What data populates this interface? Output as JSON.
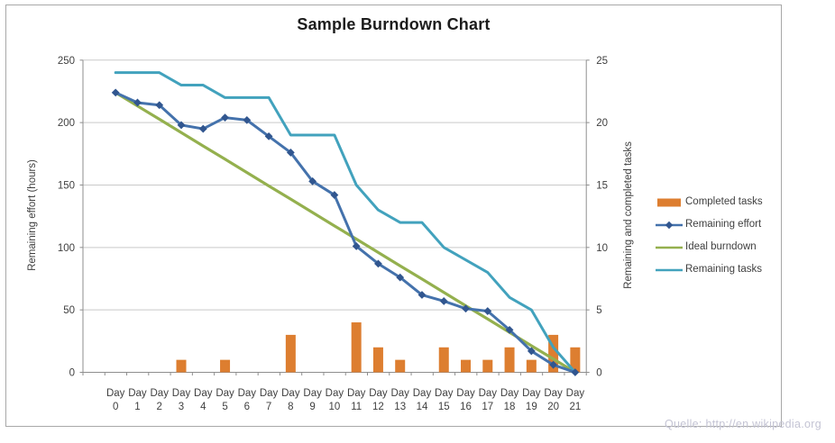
{
  "header": {
    "title": "Sample Burndown Chart"
  },
  "footer": {
    "source_text": "Quelle: http://en.wikipedia.org"
  },
  "chart_data": {
    "type": "combo",
    "title": "Sample Burndown Chart",
    "categories": [
      "Day 0",
      "Day 1",
      "Day 2",
      "Day 3",
      "Day 4",
      "Day 5",
      "Day 6",
      "Day 7",
      "Day 8",
      "Day 9",
      "Day 10",
      "Day 11",
      "Day 12",
      "Day 13",
      "Day 14",
      "Day 15",
      "Day 16",
      "Day 17",
      "Day 18",
      "Day 19",
      "Day 20",
      "Day 21"
    ],
    "axes": {
      "left": {
        "title": "Remaining effort (hours)",
        "min": 0,
        "max": 250,
        "step": 50,
        "tick_labels": [
          "0",
          "50",
          "100",
          "150",
          "200",
          "250"
        ]
      },
      "right": {
        "title": "Remaining and  completed tasks",
        "min": 0,
        "max": 25,
        "step": 5,
        "tick_labels": [
          "0",
          "5",
          "10",
          "15",
          "20",
          "25"
        ]
      }
    },
    "series": [
      {
        "name": "Completed tasks",
        "type": "bar",
        "axis": "right",
        "color": "#DD7E30",
        "values": [
          0,
          0,
          0,
          1,
          0,
          1,
          0,
          0,
          3,
          0,
          0,
          4,
          2,
          1,
          0,
          2,
          1,
          1,
          2,
          1,
          3,
          2
        ]
      },
      {
        "name": "Remaining effort",
        "type": "line",
        "axis": "left",
        "color": "#4472AC",
        "marker": "diamond",
        "marker_color": "#31568F",
        "values": [
          224,
          216,
          214,
          198,
          195,
          204,
          202,
          189,
          176,
          153,
          142,
          101,
          87,
          76,
          62,
          57,
          51,
          49,
          34,
          17,
          6,
          0
        ]
      },
      {
        "name": "Ideal burndown",
        "type": "line",
        "axis": "left",
        "color": "#94B04E",
        "values": [
          224,
          213.3,
          202.7,
          192,
          181.3,
          170.7,
          160,
          149.3,
          138.7,
          128,
          117.3,
          106.7,
          96,
          85.3,
          74.7,
          64,
          53.3,
          42.7,
          32,
          21.3,
          10.7,
          0
        ]
      },
      {
        "name": "Remaining tasks",
        "type": "line",
        "axis": "right",
        "color": "#42A2BD",
        "values": [
          24,
          24,
          24,
          23,
          23,
          22,
          22,
          22,
          19,
          19,
          19,
          15,
          13,
          12,
          12,
          10,
          9,
          8,
          6,
          5,
          2,
          0
        ]
      }
    ],
    "legend": {
      "position": "right",
      "items": [
        "Completed tasks",
        "Remaining effort",
        "Ideal burndown",
        "Remaining tasks"
      ]
    },
    "grid": "horizontal",
    "grid_color": "#C9C9C9",
    "axis_color": "#8E8E8E",
    "text_color": "#3F3F3F",
    "title_color": "#1C1C1C",
    "frame_color": "#A8A8A8",
    "footer_color": "#C4C4D4"
  }
}
